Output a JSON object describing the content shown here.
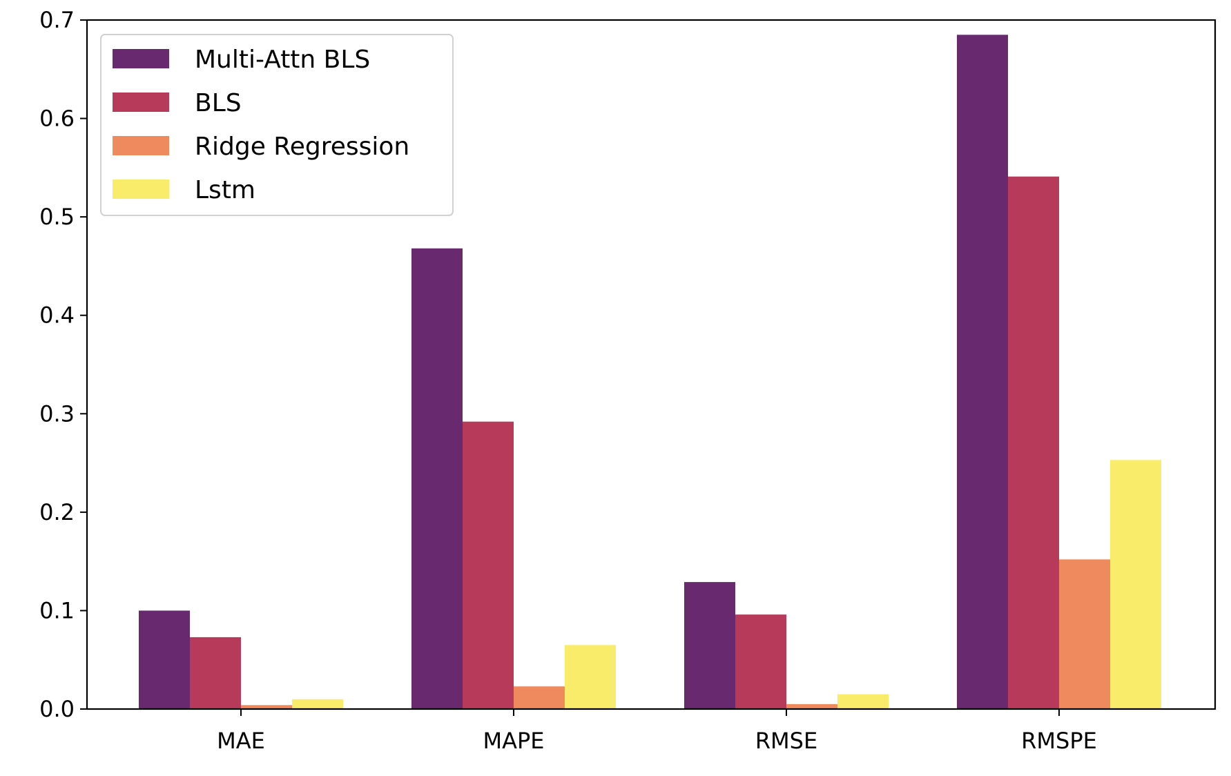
{
  "chart_data": {
    "type": "bar",
    "title": "",
    "xlabel": "",
    "ylabel": "",
    "categories": [
      "MAE",
      "MAPE",
      "RMSE",
      "RMSPE"
    ],
    "ylim": [
      0,
      0.7
    ],
    "yticks": [
      "0.0",
      "0.1",
      "0.2",
      "0.3",
      "0.4",
      "0.5",
      "0.6",
      "0.7"
    ],
    "legend_position": "top-left",
    "grid": false,
    "series": [
      {
        "name": "Multi-Attn BLS",
        "color": "#68296e",
        "values": [
          0.1,
          0.468,
          0.129,
          0.685
        ]
      },
      {
        "name": "BLS",
        "color": "#b73a5b",
        "values": [
          0.073,
          0.292,
          0.096,
          0.541
        ]
      },
      {
        "name": "Ridge Regression",
        "color": "#ef8a5e",
        "values": [
          0.004,
          0.023,
          0.005,
          0.152
        ]
      },
      {
        "name": "Lstm",
        "color": "#f8ec6a",
        "values": [
          0.01,
          0.065,
          0.015,
          0.253
        ]
      }
    ]
  }
}
